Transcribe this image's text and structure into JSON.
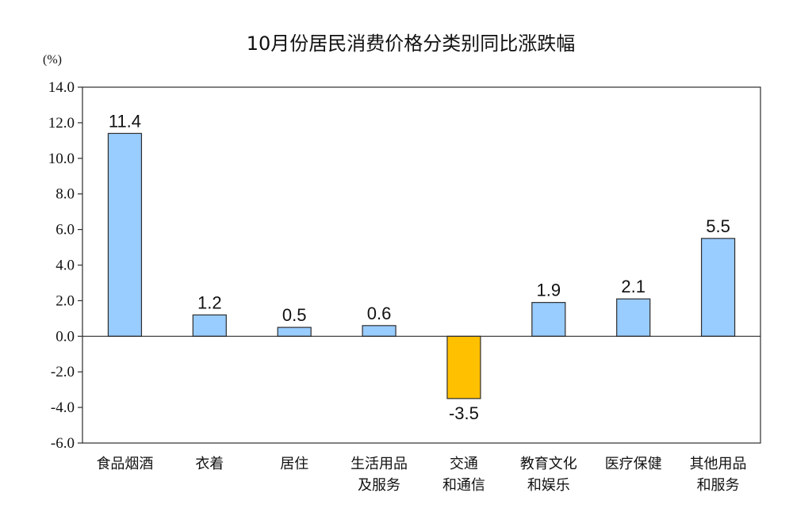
{
  "chart_data": {
    "type": "bar",
    "title": "10月份居民消费价格分类别同比涨跌幅",
    "unit_label": "(%)",
    "categories": [
      [
        "食品烟酒"
      ],
      [
        "衣着"
      ],
      [
        "居住"
      ],
      [
        "生活用品",
        "及服务"
      ],
      [
        "交通",
        "和通信"
      ],
      [
        "教育文化",
        "和娱乐"
      ],
      [
        "医疗保健"
      ],
      [
        "其他用品",
        "和服务"
      ]
    ],
    "values": [
      11.4,
      1.2,
      0.5,
      0.6,
      -3.5,
      1.9,
      2.1,
      5.5
    ],
    "value_labels": [
      "11.4",
      "1.2",
      "0.5",
      "0.6",
      "-3.5",
      "1.9",
      "2.1",
      "5.5"
    ],
    "ylim": [
      -6.0,
      14.0
    ],
    "yticks": [
      "14.0",
      "12.0",
      "10.0",
      "8.0",
      "6.0",
      "4.0",
      "2.0",
      "0.0",
      "-2.0",
      "-4.0",
      "-6.0"
    ],
    "ytick_values": [
      14,
      12,
      10,
      8,
      6,
      4,
      2,
      0,
      -2,
      -4,
      -6
    ],
    "colors": {
      "positive": "#99ccff",
      "negative": "#ffc000",
      "bar_stroke": "#2d2d2d",
      "axis": "#2d2d2d"
    },
    "grid": false,
    "legend": "none"
  }
}
